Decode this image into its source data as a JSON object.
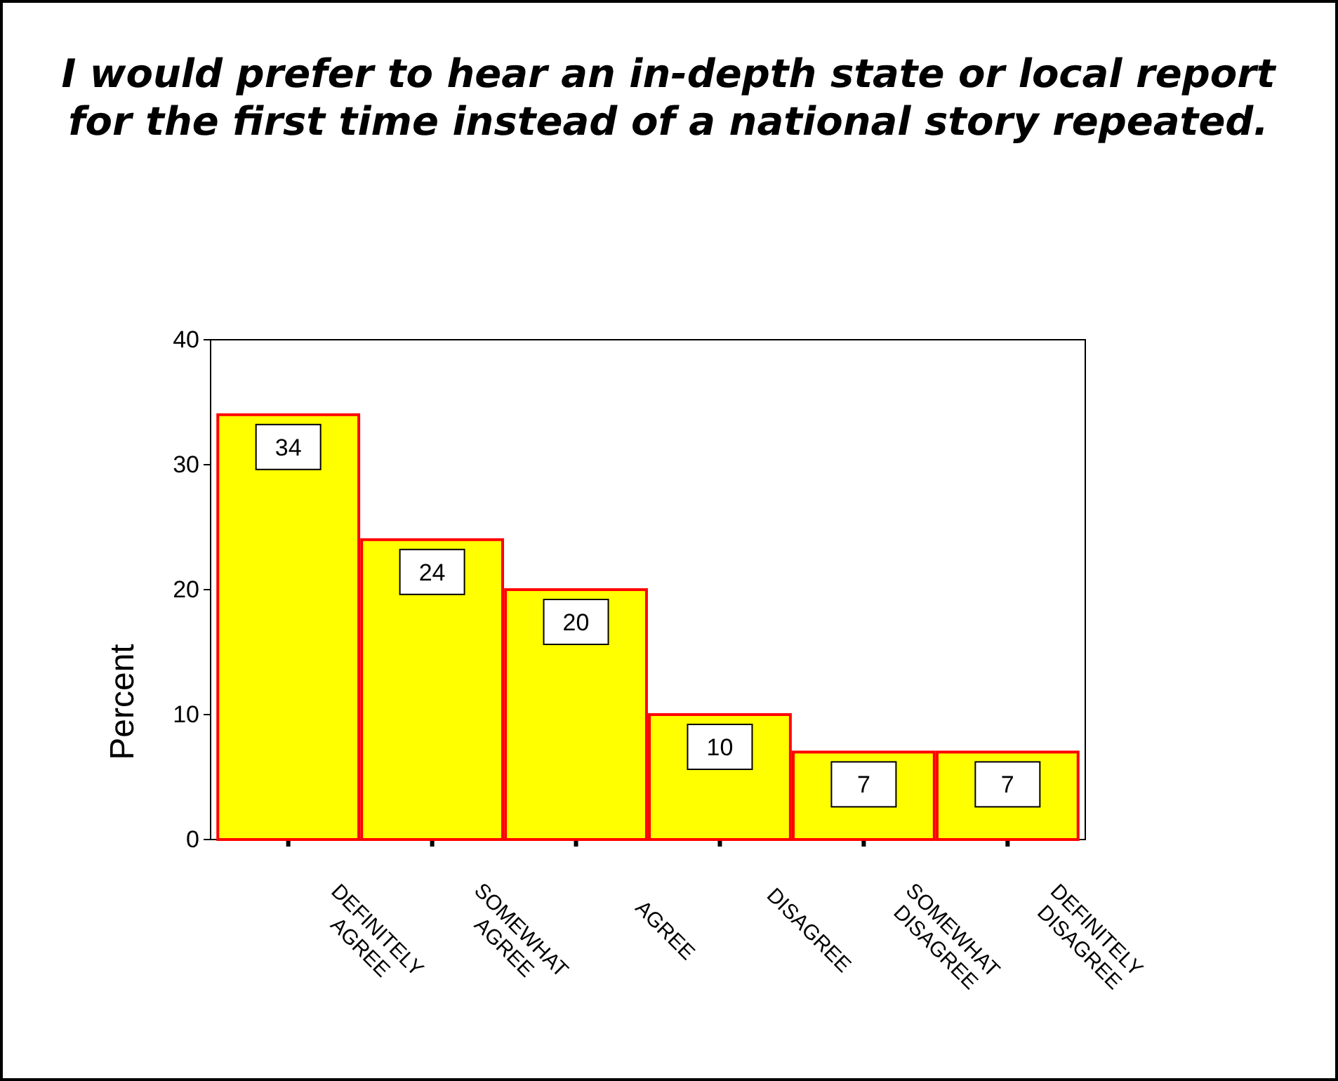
{
  "chart_data": {
    "type": "bar",
    "title": "I would prefer to hear an in-depth state or local report for the first time instead of a national story repeated.",
    "ylabel": "Percent",
    "categories": [
      "DEFINITELY AGREE",
      "SOMEWHAT AGREE",
      "AGREE",
      "DISAGREE",
      "SOMEWHAT DISAGREE",
      "DEFINITELY DISAGREE"
    ],
    "values": [
      34,
      24,
      20,
      10,
      7,
      7
    ],
    "color": "#ffff00",
    "ylim": [
      0,
      40
    ],
    "yticks": [
      0,
      10,
      20,
      30,
      40
    ],
    "data_labels": true
  }
}
